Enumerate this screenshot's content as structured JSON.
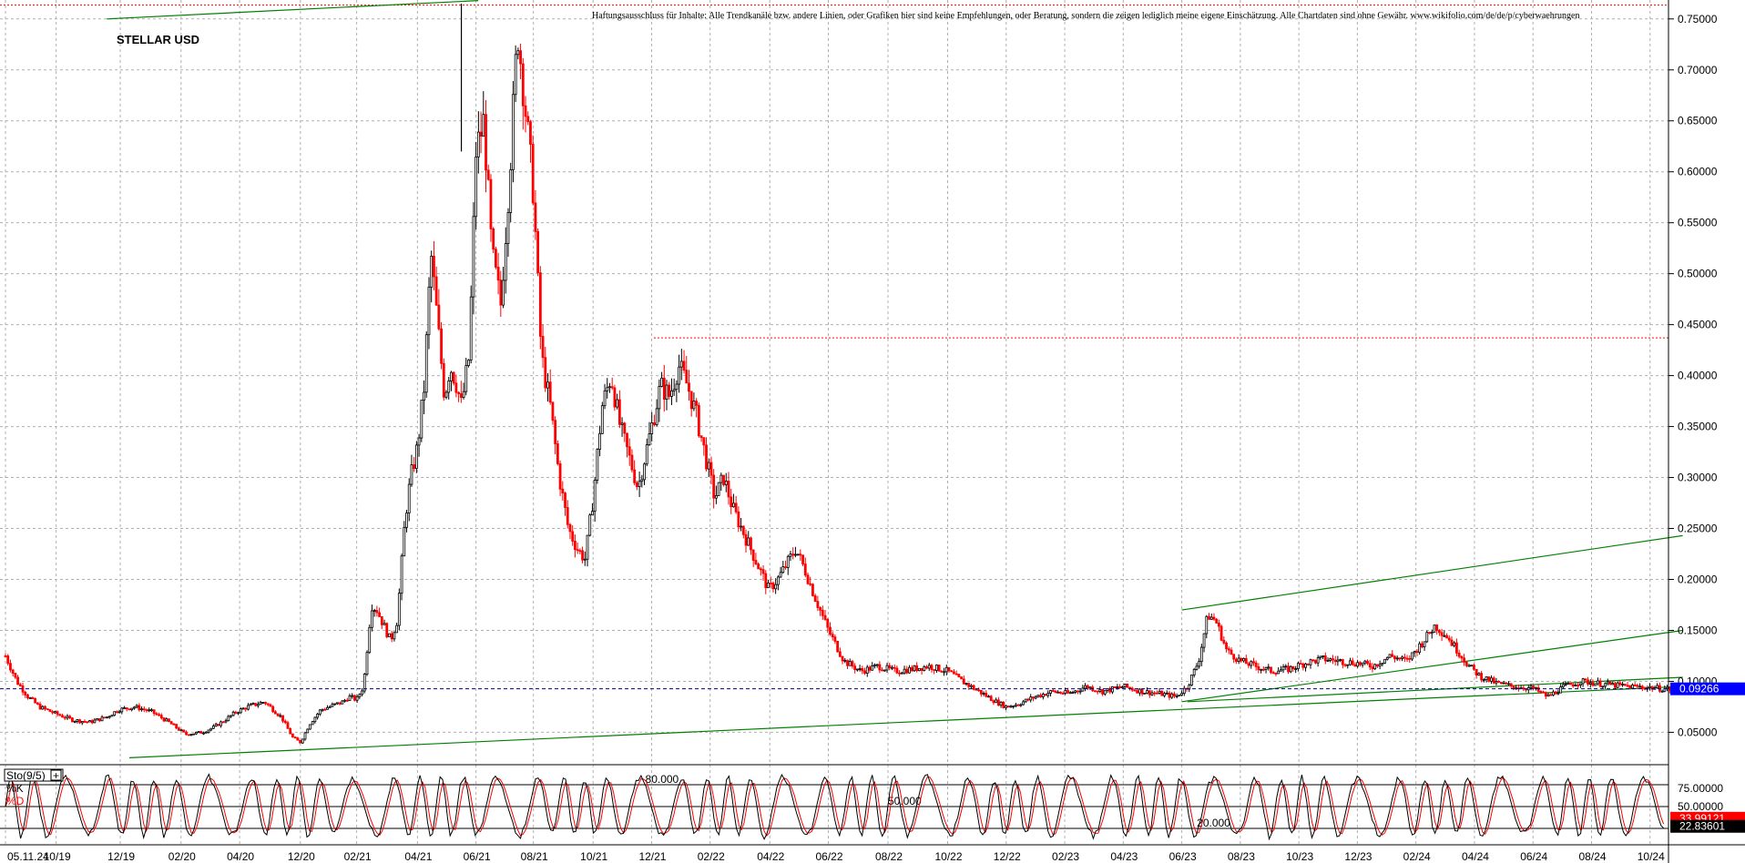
{
  "chart_data": {
    "type": "line",
    "title": "STELLAR USD",
    "disclaimer": "Haftungsausschluss für Inhalte: Alle Trendkanäle bzw. andere Linien, oder Grafiken hier sind keine Empfehlungen, oder Beratung, sondern die zeigen lediglich meine eigene Einschätzung. Alle Chartdaten sind ohne Gewähr.  www.wikifolio.com/de/de/p/cyberwaehrungen",
    "price_axis": {
      "ticks": [
        "0.75000",
        "0.70000",
        "0.65000",
        "0.60000",
        "0.55000",
        "0.50000",
        "0.45000",
        "0.40000",
        "0.35000",
        "0.30000",
        "0.25000",
        "0.20000",
        "0.15000",
        "0.10000",
        "0.05000"
      ],
      "tick_values": [
        0.75,
        0.7,
        0.65,
        0.6,
        0.55,
        0.5,
        0.45,
        0.4,
        0.35,
        0.3,
        0.25,
        0.2,
        0.15,
        0.1,
        0.05
      ],
      "ylim": [
        0.02,
        0.765
      ]
    },
    "x_ticks": [
      "05.11.24",
      "10/19",
      "12/19",
      "02/20",
      "04/20",
      "12/20",
      "02/21",
      "04/21",
      "06/21",
      "08/21",
      "10/21",
      "12/21",
      "02/22",
      "04/22",
      "06/22",
      "08/22",
      "10/22",
      "12/22",
      "02/23",
      "04/23",
      "06/23",
      "08/23",
      "10/23",
      "12/23",
      "02/24",
      "04/24",
      "06/24",
      "08/24",
      "10/24"
    ],
    "x_tick_pos": [
      0.0,
      0.045,
      0.102,
      0.156,
      0.208,
      0.262,
      0.312,
      0.366,
      0.418,
      0.469,
      0.522,
      0.574,
      0.626,
      0.679,
      0.731,
      0.784,
      0.837,
      0.889,
      0.941,
      0.993,
      1.045,
      1.097,
      1.149,
      1.201,
      1.253,
      1.305,
      1.357,
      1.409,
      1.461
    ],
    "price_series": {
      "name": "",
      "x": [
        0.0,
        0.01,
        0.02,
        0.03,
        0.045,
        0.06,
        0.075,
        0.09,
        0.1,
        0.115,
        0.13,
        0.145,
        0.16,
        0.175,
        0.185,
        0.195,
        0.205,
        0.215,
        0.23,
        0.245,
        0.255,
        0.262,
        0.27,
        0.28,
        0.29,
        0.3,
        0.305,
        0.312,
        0.318,
        0.325,
        0.33,
        0.336,
        0.342,
        0.348,
        0.355,
        0.36,
        0.366,
        0.372,
        0.378,
        0.384,
        0.39,
        0.395,
        0.4,
        0.405,
        0.412,
        0.418,
        0.425,
        0.432,
        0.44,
        0.448,
        0.455,
        0.462,
        0.469,
        0.476,
        0.484,
        0.492,
        0.5,
        0.508,
        0.515,
        0.522,
        0.53,
        0.538,
        0.546,
        0.554,
        0.562,
        0.57,
        0.576,
        0.582,
        0.59,
        0.598,
        0.606,
        0.614,
        0.622,
        0.63,
        0.638,
        0.646,
        0.654,
        0.662,
        0.67,
        0.678,
        0.686,
        0.694,
        0.702,
        0.71,
        0.72,
        0.731,
        0.745,
        0.76,
        0.775,
        0.79,
        0.805,
        0.82,
        0.837,
        0.85,
        0.865,
        0.88,
        0.889,
        0.9,
        0.915,
        0.93,
        0.945,
        0.96,
        0.975,
        0.993,
        1.01,
        1.025,
        1.04,
        1.05,
        1.06,
        1.068,
        1.075,
        1.085,
        1.097,
        1.11,
        1.125,
        1.14,
        1.155,
        1.17,
        1.185,
        1.2,
        1.215,
        1.23,
        1.245,
        1.26,
        1.27,
        1.28,
        1.29,
        1.3,
        1.31,
        1.325,
        1.34,
        1.357,
        1.37,
        1.385,
        1.4,
        1.415,
        1.43,
        1.445,
        1.461,
        1.47,
        1.48
      ],
      "values": [
        0.125,
        0.1,
        0.085,
        0.075,
        0.068,
        0.062,
        0.06,
        0.065,
        0.072,
        0.075,
        0.07,
        0.06,
        0.048,
        0.05,
        0.055,
        0.062,
        0.07,
        0.075,
        0.08,
        0.065,
        0.045,
        0.04,
        0.058,
        0.072,
        0.076,
        0.08,
        0.085,
        0.082,
        0.095,
        0.175,
        0.17,
        0.155,
        0.14,
        0.16,
        0.26,
        0.3,
        0.33,
        0.39,
        0.52,
        0.45,
        0.38,
        0.41,
        0.395,
        0.37,
        0.42,
        0.62,
        0.65,
        0.52,
        0.47,
        0.6,
        0.74,
        0.66,
        0.58,
        0.42,
        0.37,
        0.3,
        0.25,
        0.23,
        0.22,
        0.28,
        0.37,
        0.4,
        0.35,
        0.32,
        0.29,
        0.33,
        0.36,
        0.39,
        0.38,
        0.41,
        0.39,
        0.36,
        0.32,
        0.28,
        0.3,
        0.27,
        0.25,
        0.23,
        0.21,
        0.19,
        0.2,
        0.215,
        0.23,
        0.21,
        0.18,
        0.15,
        0.12,
        0.11,
        0.115,
        0.11,
        0.112,
        0.115,
        0.11,
        0.1,
        0.09,
        0.08,
        0.075,
        0.078,
        0.085,
        0.09,
        0.088,
        0.095,
        0.09,
        0.095,
        0.09,
        0.088,
        0.085,
        0.095,
        0.12,
        0.165,
        0.16,
        0.13,
        0.12,
        0.115,
        0.11,
        0.112,
        0.118,
        0.122,
        0.12,
        0.118,
        0.115,
        0.125,
        0.12,
        0.14,
        0.155,
        0.145,
        0.13,
        0.115,
        0.105,
        0.098,
        0.095,
        0.093,
        0.085,
        0.095,
        0.1,
        0.098,
        0.096,
        0.095,
        0.094,
        0.093,
        0.092
      ]
    },
    "last_price": "0.09266",
    "stochastic": {
      "label": "Sto(9/5)",
      "k_label": "%K",
      "d_label": "%D",
      "ticks": [
        "75.00000",
        "50.00000"
      ],
      "tick_values": [
        75,
        50
      ],
      "levels": [
        "80.000",
        "50.000",
        "20.000"
      ],
      "level_values": [
        80,
        50,
        20
      ],
      "last_k": "33.99121",
      "last_d": "22.83601",
      "ylim": [
        0,
        100
      ]
    },
    "colors": {
      "up": "#000000",
      "down": "#ff0000",
      "trend": "#008000",
      "grid": "#b0b0b0",
      "last_price_bg": "#0000ff",
      "k_line": "#000000",
      "d_line": "#ff0000"
    }
  }
}
